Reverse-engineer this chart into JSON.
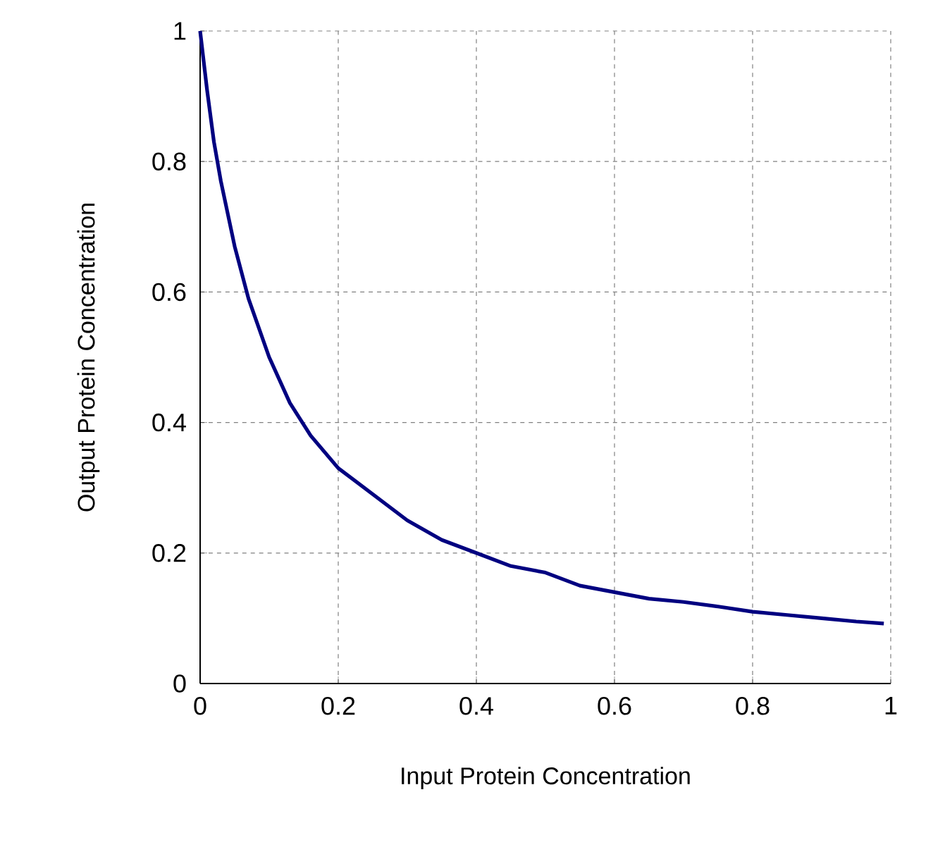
{
  "chart_data": {
    "type": "line",
    "xlabel": "Input Protein Concentration",
    "ylabel": "Output Protein Concentration",
    "x": [
      0,
      0.01,
      0.02,
      0.03,
      0.05,
      0.07,
      0.1,
      0.13,
      0.16,
      0.2,
      0.25,
      0.3,
      0.35,
      0.4,
      0.45,
      0.5,
      0.55,
      0.6,
      0.65,
      0.7,
      0.75,
      0.8,
      0.85,
      0.9,
      0.95,
      0.99
    ],
    "series": [
      {
        "color": "#000080",
        "values": [
          1,
          0.91,
          0.83,
          0.77,
          0.67,
          0.59,
          0.5,
          0.43,
          0.38,
          0.33,
          0.29,
          0.25,
          0.22,
          0.2,
          0.18,
          0.17,
          0.15,
          0.14,
          0.13,
          0.125,
          0.118,
          0.11,
          0.105,
          0.1,
          0.095,
          0.092
        ]
      }
    ],
    "xlim": [
      0,
      1
    ],
    "ylim": [
      0,
      1
    ],
    "xticks": [
      0,
      0.2,
      0.4,
      0.6,
      0.8,
      1
    ],
    "yticks": [
      0,
      0.2,
      0.4,
      0.6,
      0.8,
      1
    ],
    "grid": true,
    "marker": "none",
    "line_style": "solid"
  }
}
